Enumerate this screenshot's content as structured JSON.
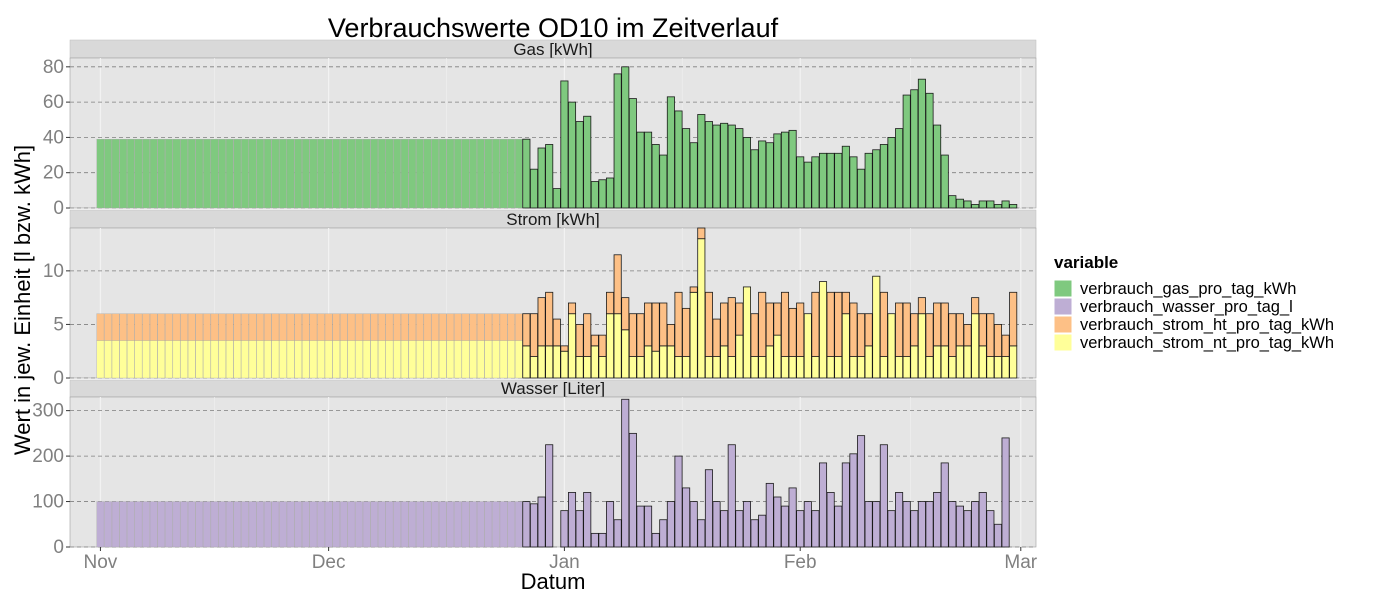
{
  "chart_data": {
    "type": "bar",
    "title": "Verbrauchswerte OD10 im Zeitverlauf",
    "xlabel": "Datum",
    "ylabel": "Wert in jew. Einheit [l bzw. kWh]",
    "x_ticks": [
      {
        "label": "Nov",
        "date": "2019-11-01"
      },
      {
        "label": "Dec",
        "date": "2019-12-01"
      },
      {
        "label": "Jan",
        "date": "2020-01-01"
      },
      {
        "label": "Feb",
        "date": "2020-02-01"
      },
      {
        "label": "Mar",
        "date": "2020-03-01"
      }
    ],
    "grid": true,
    "legend": {
      "title": "variable",
      "position": "right",
      "items": [
        {
          "label": "verbrauch_gas_pro_tag_kWh",
          "color": "#7fc97f"
        },
        {
          "label": "verbrauch_wasser_pro_tag_l",
          "color": "#beaed4"
        },
        {
          "label": "verbrauch_strom_ht_pro_tag_kWh",
          "color": "#fdc086"
        },
        {
          "label": "verbrauch_strom_nt_pro_tag_kWh",
          "color": "#ffff99"
        }
      ]
    },
    "panels": [
      {
        "strip_label": "Gas [kWh]",
        "ylim": [
          0,
          85
        ],
        "y_ticks": [
          0,
          20,
          40,
          60,
          80
        ],
        "series": [
          {
            "name": "verbrauch_gas_pro_tag_kWh",
            "color": "#7fc97f",
            "segments": [
              {
                "start_date": "2019-11-01",
                "values": [
                  39,
                  39,
                  39,
                  39,
                  39,
                  39,
                  39,
                  39,
                  39,
                  39,
                  39,
                  39,
                  39,
                  39,
                  39,
                  39,
                  39,
                  39,
                  39,
                  39,
                  39,
                  39,
                  39,
                  39,
                  39,
                  39,
                  39,
                  39,
                  39,
                  39,
                  39,
                  39,
                  39,
                  39,
                  39,
                  39,
                  39,
                  39,
                  39,
                  39,
                  39,
                  39,
                  39,
                  39,
                  39,
                  39,
                  39,
                  39,
                  39,
                  39,
                  39,
                  39,
                  39,
                  39,
                  39,
                  39
                ]
              },
              {
                "start_date": "2019-12-27",
                "values": [
                  39,
                  22,
                  34,
                  36,
                  11,
                  72,
                  60,
                  49,
                  52,
                  15,
                  16,
                  17,
                  76,
                  80,
                  62,
                  43,
                  43,
                  36,
                  30,
                  63,
                  55,
                  45,
                  37,
                  53,
                  49,
                  47,
                  48,
                  47,
                  45,
                  40,
                  33,
                  38,
                  37,
                  42,
                  43,
                  44,
                  29,
                  26,
                  29,
                  31,
                  31,
                  31,
                  35,
                  29,
                  22,
                  31,
                  33,
                  36,
                  40,
                  45,
                  64,
                  67,
                  73,
                  65,
                  47,
                  30,
                  7,
                  5,
                  4,
                  2,
                  4,
                  4,
                  2,
                  4,
                  2
                ]
              }
            ]
          }
        ]
      },
      {
        "strip_label": "Strom [kWh]",
        "ylim": [
          0,
          14
        ],
        "y_ticks": [
          0,
          5,
          10
        ],
        "series": [
          {
            "name": "verbrauch_strom_nt_pro_tag_kWh",
            "color": "#ffff99",
            "segments": [
              {
                "start_date": "2019-11-01",
                "values": [
                  3.5,
                  3.5,
                  3.5,
                  3.5,
                  3.5,
                  3.5,
                  3.5,
                  3.5,
                  3.5,
                  3.5,
                  3.5,
                  3.5,
                  3.5,
                  3.5,
                  3.5,
                  3.5,
                  3.5,
                  3.5,
                  3.5,
                  3.5,
                  3.5,
                  3.5,
                  3.5,
                  3.5,
                  3.5,
                  3.5,
                  3.5,
                  3.5,
                  3.5,
                  3.5,
                  3.5,
                  3.5,
                  3.5,
                  3.5,
                  3.5,
                  3.5,
                  3.5,
                  3.5,
                  3.5,
                  3.5,
                  3.5,
                  3.5,
                  3.5,
                  3.5,
                  3.5,
                  3.5,
                  3.5,
                  3.5,
                  3.5,
                  3.5,
                  3.5,
                  3.5,
                  3.5,
                  3.5,
                  3.5,
                  3.5
                ]
              },
              {
                "start_date": "2019-12-27",
                "values": [
                  3,
                  2,
                  3,
                  3,
                  3,
                  2.5,
                  6,
                  2,
                  2,
                  3,
                  2,
                  6,
                  6,
                  4.5,
                  2,
                  2,
                  3,
                  2.5,
                  3,
                  3,
                  2,
                  2,
                  8,
                  13,
                  2,
                  2,
                  3,
                  2,
                  4,
                  8.5,
                  2,
                  2,
                  3,
                  4,
                  2,
                  2,
                  2,
                  6,
                  2,
                  9,
                  2,
                  2,
                  6,
                  2,
                  2,
                  3,
                  9.5,
                  2,
                  6,
                  2,
                  2,
                  3,
                  6,
                  2,
                  3,
                  3,
                  2,
                  3,
                  3,
                  6,
                  3,
                  2,
                  2,
                  2,
                  3
                ]
              }
            ]
          },
          {
            "name": "verbrauch_strom_ht_pro_tag_kWh",
            "color": "#fdc086",
            "segments": [
              {
                "start_date": "2019-11-01",
                "values": [
                  2.5,
                  2.5,
                  2.5,
                  2.5,
                  2.5,
                  2.5,
                  2.5,
                  2.5,
                  2.5,
                  2.5,
                  2.5,
                  2.5,
                  2.5,
                  2.5,
                  2.5,
                  2.5,
                  2.5,
                  2.5,
                  2.5,
                  2.5,
                  2.5,
                  2.5,
                  2.5,
                  2.5,
                  2.5,
                  2.5,
                  2.5,
                  2.5,
                  2.5,
                  2.5,
                  2.5,
                  2.5,
                  2.5,
                  2.5,
                  2.5,
                  2.5,
                  2.5,
                  2.5,
                  2.5,
                  2.5,
                  2.5,
                  2.5,
                  2.5,
                  2.5,
                  2.5,
                  2.5,
                  2.5,
                  2.5,
                  2.5,
                  2.5,
                  2.5,
                  2.5,
                  2.5,
                  2.5,
                  2.5,
                  2.5
                ]
              },
              {
                "start_date": "2019-12-27",
                "values": [
                  3,
                  4,
                  4.5,
                  5,
                  2.5,
                  0.5,
                  1,
                  3,
                  4,
                  1,
                  2,
                  2,
                  5.5,
                  3,
                  4,
                  4,
                  4,
                  4.5,
                  4,
                  2,
                  6,
                  4.5,
                  0.5,
                  1,
                  6,
                  3.5,
                  4,
                  5.5,
                  3,
                  0,
                  4,
                  6,
                  4,
                  3,
                  6,
                  4.5,
                  5,
                  0,
                  6,
                  0,
                  6,
                  6,
                  2,
                  5,
                  4,
                  3,
                  0,
                  6,
                  0,
                  5,
                  5,
                  3,
                  1.5,
                  4,
                  4,
                  4,
                  4,
                  3,
                  2,
                  1.5,
                  3,
                  4,
                  3,
                  2,
                  5
                ]
              }
            ]
          }
        ]
      },
      {
        "strip_label": "Wasser [Liter]",
        "ylim": [
          0,
          330
        ],
        "y_ticks": [
          0,
          100,
          200,
          300
        ],
        "series": [
          {
            "name": "verbrauch_wasser_pro_tag_l",
            "color": "#beaed4",
            "segments": [
              {
                "start_date": "2019-11-01",
                "values": [
                  100,
                  100,
                  100,
                  100,
                  100,
                  100,
                  100,
                  100,
                  100,
                  100,
                  100,
                  100,
                  100,
                  100,
                  100,
                  100,
                  100,
                  100,
                  100,
                  100,
                  100,
                  100,
                  100,
                  100,
                  100,
                  100,
                  100,
                  100,
                  100,
                  100,
                  100,
                  100,
                  100,
                  100,
                  100,
                  100,
                  100,
                  100,
                  100,
                  100,
                  100,
                  100,
                  100,
                  100,
                  100,
                  100,
                  100,
                  100,
                  100,
                  100,
                  100,
                  100,
                  100,
                  100,
                  100,
                  100
                ]
              },
              {
                "start_date": "2019-12-27",
                "values": [
                  100,
                  95,
                  110,
                  225,
                  0,
                  80,
                  120,
                  80,
                  120,
                  30,
                  30,
                  100,
                  60,
                  325,
                  250,
                  90,
                  90,
                  30,
                  60,
                  100,
                  200,
                  130,
                  100,
                  60,
                  170,
                  100,
                  80,
                  225,
                  80,
                  100,
                  60,
                  70,
                  140,
                  110,
                  90,
                  130,
                  80,
                  100,
                  80,
                  185,
                  120,
                  90,
                  185,
                  205,
                  245,
                  100,
                  100,
                  225,
                  80,
                  120,
                  100,
                  80,
                  100,
                  100,
                  120,
                  185,
                  100,
                  90,
                  80,
                  100,
                  120,
                  80,
                  50,
                  240
                ]
              }
            ]
          }
        ]
      }
    ]
  }
}
